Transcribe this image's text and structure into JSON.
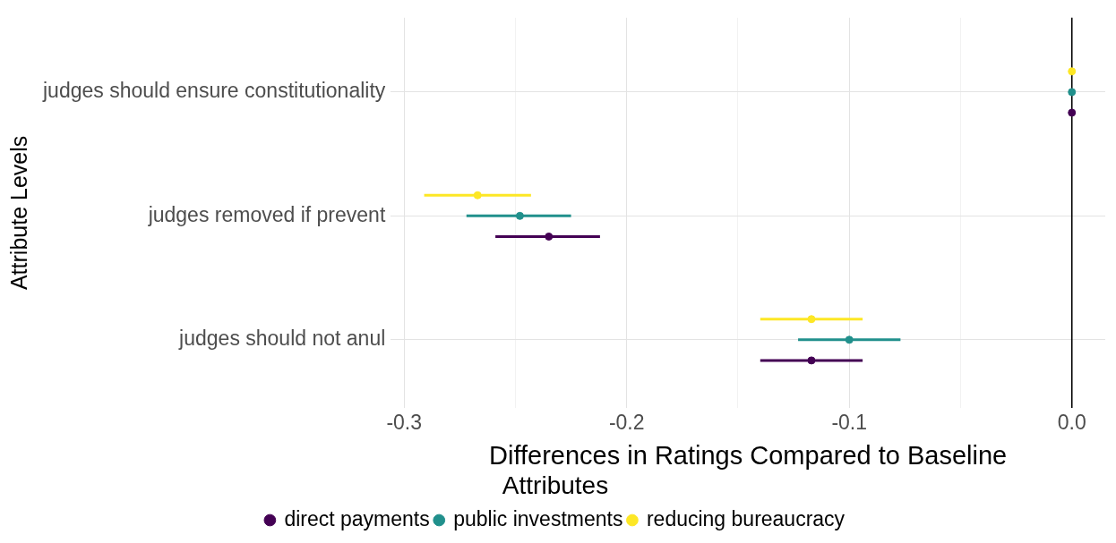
{
  "chart_data": {
    "type": "scatter",
    "orientation": "horizontal",
    "categories": [
      "judges should ensure constitutionality",
      "judges removed if prevent",
      "judges should not anul"
    ],
    "series": [
      {
        "name": "direct payments",
        "color": "#440154",
        "values": [
          0,
          -0.235,
          -0.117
        ],
        "errors": [
          null,
          [
            -0.259,
            -0.212
          ],
          [
            -0.14,
            -0.094
          ]
        ]
      },
      {
        "name": "public investments",
        "color": "#21908c",
        "values": [
          0,
          -0.248,
          -0.1
        ],
        "errors": [
          null,
          [
            -0.272,
            -0.225
          ],
          [
            -0.123,
            -0.077
          ]
        ]
      },
      {
        "name": "reducing bureaucracy",
        "color": "#fde725",
        "values": [
          0,
          -0.267,
          -0.117
        ],
        "errors": [
          null,
          [
            -0.291,
            -0.243
          ],
          [
            -0.14,
            -0.094
          ]
        ]
      }
    ],
    "xlabel": "Differences in Ratings Compared to Baseline",
    "ylabel": "Attribute Levels",
    "legend_title": "Attributes",
    "legend": "bottom",
    "grid": true,
    "marker": "circle",
    "xlim": [
      -0.306,
      0.015
    ],
    "xticks": [
      -0.3,
      {
        "value": -0.25,
        "label": null
      },
      -0.2,
      {
        "value": -0.15,
        "label": null
      },
      -0.1,
      {
        "value": -0.05,
        "label": null
      },
      {
        "value": 0,
        "label": "0.0"
      }
    ],
    "ref_lines": [
      {
        "axis": "x",
        "value": 0,
        "color": "#000000"
      }
    ]
  }
}
